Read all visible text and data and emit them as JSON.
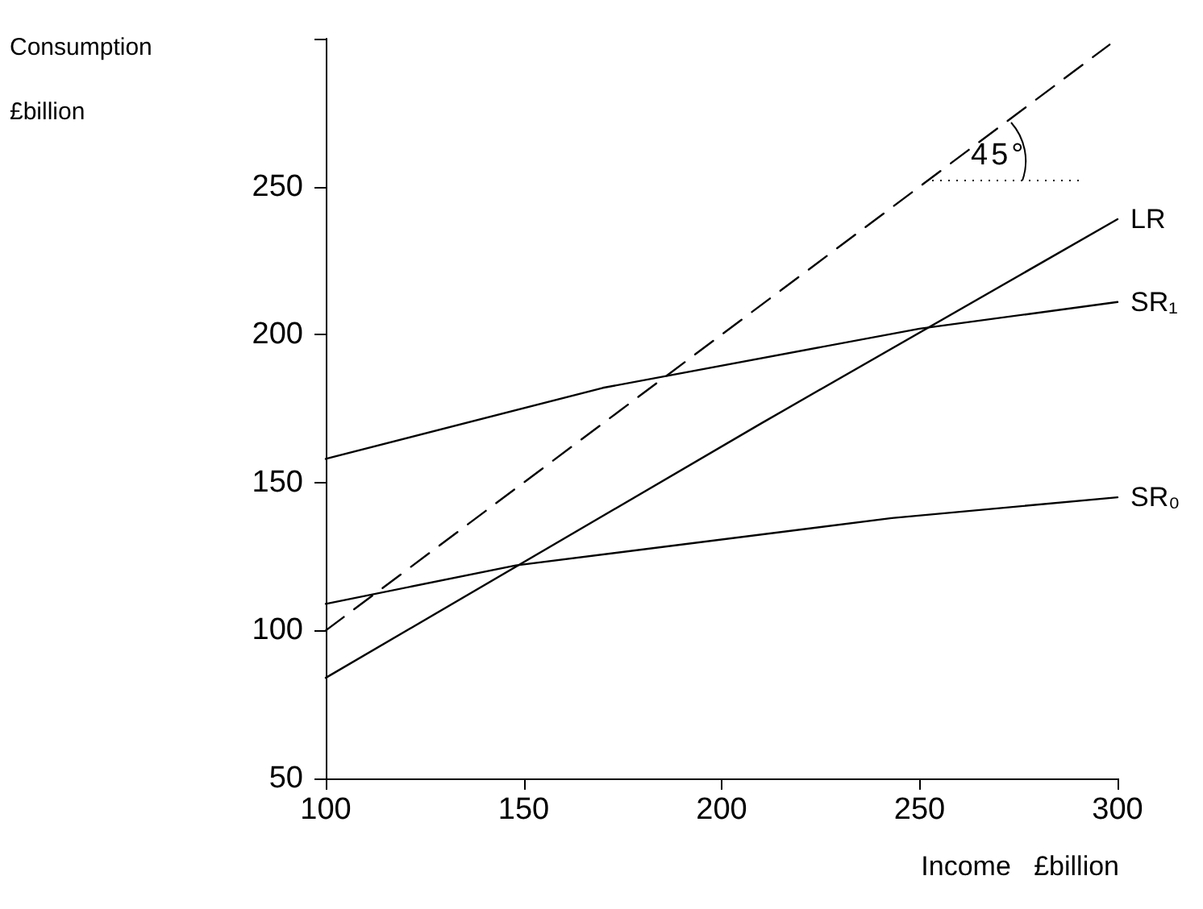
{
  "chart_data": {
    "type": "line",
    "xlabel": "Income   £billion",
    "ylabel": "Consumption\n£billion",
    "xlim": [
      100,
      300
    ],
    "xticks": [
      100,
      150,
      200,
      250,
      300
    ],
    "ylim": [
      50,
      300
    ],
    "yticks": [
      50,
      100,
      150,
      200,
      250,
      {
        "value": 300,
        "label": null
      }
    ],
    "grid": false,
    "legend": false,
    "marker": "none",
    "series": [
      {
        "x": [
          100,
          298
        ],
        "values": [
          100,
          298
        ],
        "color": "#000000",
        "line_style": "dashed"
      },
      {
        "name": "LR",
        "x": [
          100,
          210,
          300
        ],
        "values": [
          84,
          170,
          239
        ],
        "color": "#000000",
        "line_style": "solid"
      },
      {
        "name": "SR₁",
        "x": [
          100,
          170,
          250,
          300
        ],
        "values": [
          158,
          182,
          202,
          211
        ],
        "color": "#000000",
        "line_style": "solid"
      },
      {
        "name": "SR₀",
        "x": [
          100,
          148,
          243,
          300
        ],
        "values": [
          109,
          122,
          138,
          145
        ],
        "color": "#000000",
        "line_style": "solid"
      }
    ],
    "annotations": [
      "45°"
    ]
  }
}
